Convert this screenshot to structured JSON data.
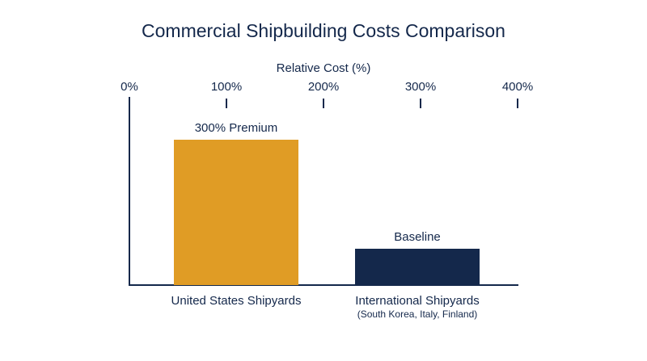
{
  "chart_data": {
    "type": "bar",
    "title": "Commercial Shipbuilding Costs Comparison",
    "x_label": "Relative Cost (%)",
    "categories": [
      "United States Shipyards",
      "International Shipyards"
    ],
    "category_notes": [
      null,
      "(South Korea, Italy, Finland)"
    ],
    "values": [
      400,
      100
    ],
    "bar_labels": [
      "300% Premium",
      "Baseline"
    ],
    "colors": [
      "#e09c25",
      "#14284b"
    ],
    "xlim": [
      0,
      400
    ],
    "xticks": [
      {
        "value": 0,
        "label": "0%"
      },
      {
        "value": 100,
        "label": "100%"
      },
      {
        "value": 200,
        "label": "200%"
      },
      {
        "value": 300,
        "label": "300%"
      },
      {
        "value": 400,
        "label": "400%"
      }
    ]
  }
}
